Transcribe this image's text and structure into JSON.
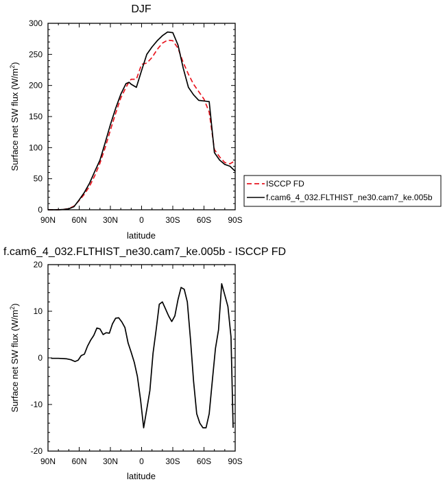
{
  "chart_data": [
    {
      "type": "line",
      "title": "DJF",
      "xlabel": "latitude",
      "ylabel_main": "Surface net SW flux (W/m",
      "ylabel_sup": "2",
      "ylabel_close": ")",
      "xlim": [
        90,
        -90
      ],
      "ylim": [
        0,
        300
      ],
      "xtick_values": [
        90,
        60,
        30,
        0,
        -30,
        -60,
        -90
      ],
      "xtick_labels": [
        "90N",
        "60N",
        "30N",
        "0",
        "30S",
        "60S",
        "90S"
      ],
      "ytick_values": [
        0,
        50,
        100,
        150,
        200,
        250,
        300
      ],
      "ytick_labels": [
        "0",
        "50",
        "100",
        "150",
        "200",
        "250",
        "300"
      ],
      "legend_position": "right",
      "series": [
        {
          "name": "ISCCP FD",
          "color": "#e8141e",
          "dash": "dashed",
          "x": [
            90,
            85,
            80,
            75,
            70,
            65,
            60,
            55,
            50,
            45,
            40,
            35,
            30,
            25,
            20,
            15,
            12,
            10,
            5,
            0,
            -5,
            -10,
            -15,
            -20,
            -25,
            -30,
            -35,
            -40,
            -45,
            -50,
            -55,
            -60,
            -65,
            -70,
            -75,
            -80,
            -85,
            -90
          ],
          "y": [
            0,
            0,
            0,
            0.5,
            2,
            6,
            15,
            25,
            38,
            55,
            75,
            100,
            128,
            155,
            180,
            197,
            206,
            210,
            210,
            234,
            236,
            245,
            258,
            268,
            273,
            272,
            260,
            237,
            218,
            202,
            190,
            178,
            157,
            97,
            85,
            76,
            74,
            79
          ]
        },
        {
          "name": "f.cam6_4_032.FLTHIST_ne30.cam7_ke.005b",
          "color": "#000000",
          "dash": "solid",
          "x": [
            90,
            85,
            80,
            75,
            70,
            65,
            60,
            55,
            50,
            45,
            40,
            35,
            30,
            25,
            20,
            15,
            12,
            10,
            5,
            0,
            -5,
            -10,
            -15,
            -20,
            -25,
            -30,
            -35,
            -40,
            -45,
            -50,
            -55,
            -60,
            -65,
            -70,
            -75,
            -80,
            -85,
            -90
          ],
          "y": [
            0,
            0,
            0,
            0.5,
            1.5,
            5,
            16,
            28,
            43,
            62,
            80,
            108,
            137,
            163,
            186,
            203,
            205,
            202,
            197,
            224,
            250,
            262,
            272,
            280,
            286,
            285,
            265,
            228,
            197,
            185,
            176,
            175,
            174,
            92,
            80,
            73,
            70,
            62
          ]
        }
      ]
    },
    {
      "type": "line",
      "title": "f.cam6_4_032.FLTHIST_ne30.cam7_ke.005b - ISCCP FD",
      "xlabel": "latitude",
      "ylabel_main": "Surface net SW flux (W/m",
      "ylabel_sup": "2",
      "ylabel_close": ")",
      "xlim": [
        90,
        -90
      ],
      "ylim": [
        -20,
        20
      ],
      "xtick_values": [
        90,
        60,
        30,
        0,
        -30,
        -60,
        -90
      ],
      "xtick_labels": [
        "90N",
        "60N",
        "30N",
        "0",
        "30S",
        "60S",
        "90S"
      ],
      "ytick_values": [
        -20,
        -10,
        0,
        10,
        20
      ],
      "ytick_labels": [
        "-20",
        "-10",
        "0",
        "10",
        "20"
      ],
      "series": [
        {
          "color": "#000000",
          "dash": "solid",
          "x": [
            87,
            80,
            72,
            68,
            64,
            61,
            58,
            55,
            52,
            49,
            46,
            43,
            40,
            37,
            34,
            31,
            28,
            25,
            22,
            19,
            16,
            13,
            10,
            7,
            4,
            1,
            -2,
            -5,
            -8,
            -11,
            -14,
            -17,
            -20,
            -23,
            -26,
            -29,
            -32,
            -35,
            -38,
            -41,
            -44,
            -47,
            -50,
            -53,
            -56,
            -59,
            -62,
            -65,
            -68,
            -71,
            -74,
            -77,
            -80,
            -83,
            -86,
            -88
          ],
          "y": [
            -0.1,
            -0.1,
            -0.2,
            -0.4,
            -0.8,
            -0.5,
            0.5,
            0.8,
            2.5,
            3.8,
            4.8,
            6.4,
            6.2,
            5.0,
            5.4,
            5.3,
            7.3,
            8.5,
            8.6,
            7.7,
            6.5,
            3.2,
            1.2,
            -1.0,
            -4.0,
            -9.0,
            -15.0,
            -11.0,
            -7.0,
            1.0,
            6.0,
            11.5,
            12.0,
            10.5,
            9.0,
            7.8,
            9.0,
            12.5,
            15.1,
            14.7,
            12.0,
            4.0,
            -5.0,
            -12.0,
            -14.0,
            -15.0,
            -15.0,
            -12.0,
            -5.0,
            2.0,
            6.0,
            15.9,
            13.5,
            11.0,
            4.5,
            -15.0
          ]
        }
      ]
    }
  ]
}
